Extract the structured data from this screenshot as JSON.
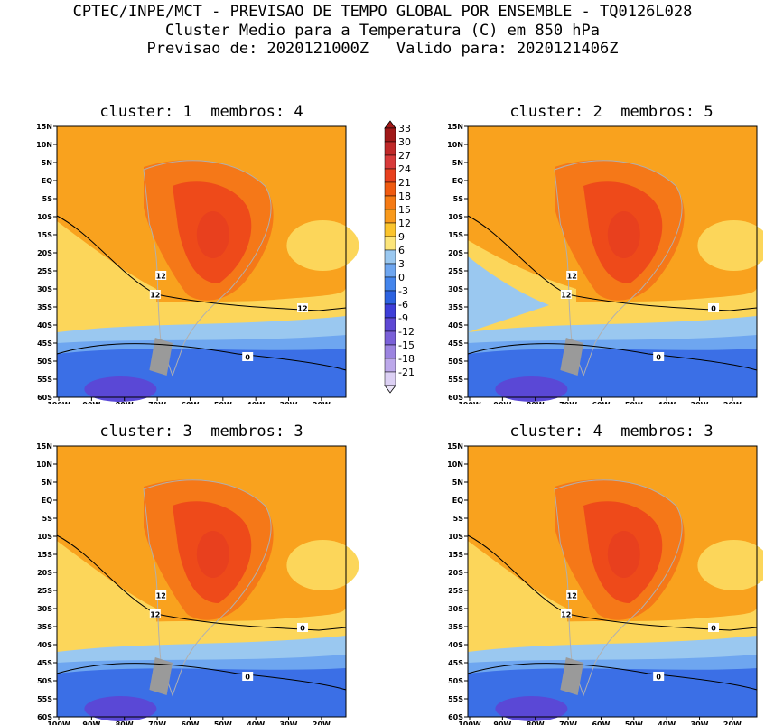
{
  "header": {
    "line1": "CPTEC/INPE/MCT - PREVISAO DE TEMPO GLOBAL POR ENSEMBLE - TQ0126L028",
    "line2": "Cluster Medio para a Temperatura (C) em 850 hPa",
    "line3": "Previsao de: 2020121000Z   Valido para: 2020121406Z"
  },
  "lat_labels": [
    "15N",
    "10N",
    "5N",
    "EQ",
    "5S",
    "10S",
    "15S",
    "20S",
    "25S",
    "30S",
    "35S",
    "40S",
    "45S",
    "50S",
    "55S",
    "60S"
  ],
  "lon_labels": [
    "100W",
    "90W",
    "80W",
    "70W",
    "60W",
    "50W",
    "40W",
    "30W",
    "20W"
  ],
  "panels": [
    {
      "title": "cluster: 1  membros: 4",
      "contour_labels": [
        "12",
        "12",
        "12",
        "0"
      ]
    },
    {
      "title": "cluster: 2  membros: 5",
      "contour_labels": [
        "12",
        "12",
        "0",
        "0"
      ]
    },
    {
      "title": "cluster: 3  membros: 3",
      "contour_labels": [
        "12",
        "12",
        "0",
        "0"
      ]
    },
    {
      "title": "cluster: 4  membros: 3",
      "contour_labels": [
        "12",
        "12",
        "0",
        "0"
      ]
    }
  ],
  "colorbar": {
    "labels": [
      "33",
      "30",
      "27",
      "24",
      "21",
      "18",
      "15",
      "12",
      "9",
      "6",
      "3",
      "0",
      "-3",
      "-6",
      "-9",
      "-12",
      "-15",
      "-18",
      "-21"
    ],
    "colors": [
      "#a01818",
      "#c02828",
      "#d83a3a",
      "#e8401e",
      "#f05a10",
      "#f57a14",
      "#f99a1c",
      "#fbc42c",
      "#fce57a",
      "#9ac8f0",
      "#6ea6f0",
      "#4485ec",
      "#2c62e0",
      "#3e3ed8",
      "#5e48d4",
      "#7a60d8",
      "#9c84e0",
      "#bca8ea",
      "#dcd0f4"
    ],
    "colors_note": ""
  },
  "colors": {
    "ocean_warm": "#f9a21e",
    "ocean_cool": "#fcd65a",
    "land_hot": "#ee4a1a",
    "land_warm": "#f57818",
    "cold": "#3b6fe6",
    "frozen": "#5a48d6"
  }
}
